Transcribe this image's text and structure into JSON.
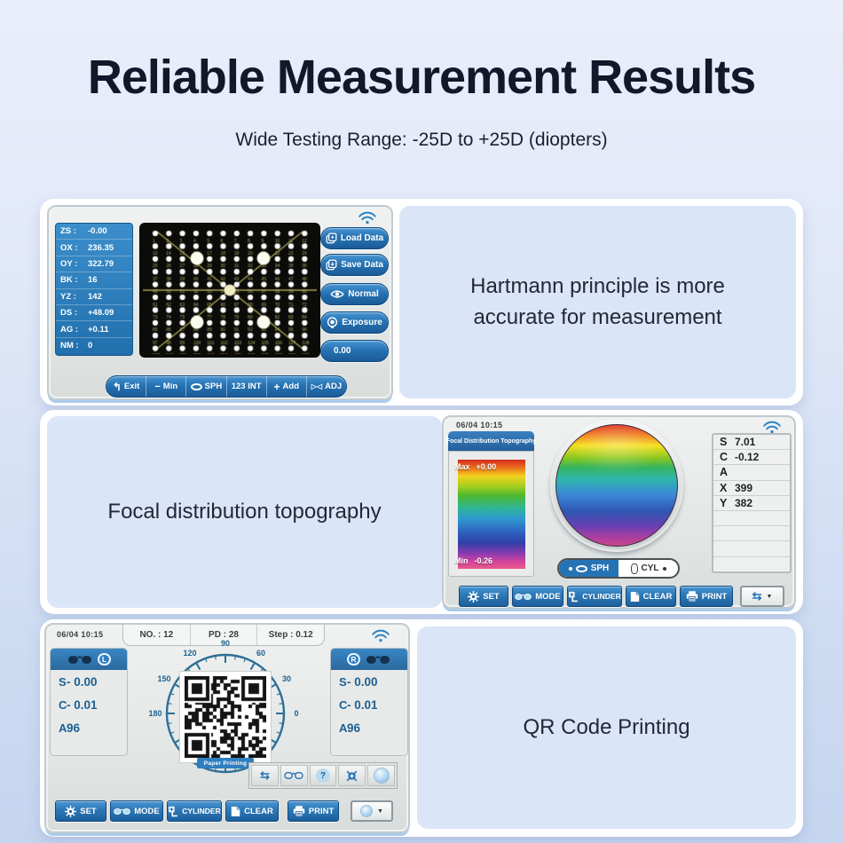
{
  "colors": {
    "accent_blue": "#2673b4",
    "panel_blue": "#dbe5f8",
    "ink": "#13172a",
    "screen_header_blue": "#2a6da8",
    "wifi_blue": "#2b82c4"
  },
  "header": {
    "title": "Reliable Measurement Results",
    "subtitle": "Wide Testing Range: -25D to +25D (diopters)"
  },
  "panel1": {
    "caption": "Hartmann principle is more accurate for measurement",
    "screen": {
      "readings": [
        {
          "label": "ZS :",
          "value": "-0.00"
        },
        {
          "label": "OX :",
          "value": "236.35"
        },
        {
          "label": "OY :",
          "value": "322.79"
        },
        {
          "label": "BK :",
          "value": "16"
        },
        {
          "label": "YZ :",
          "value": "142"
        },
        {
          "label": "DS :",
          "value": "+48.09"
        },
        {
          "label": "AG :",
          "value": "+0.11"
        },
        {
          "label": "NM :",
          "value": "0"
        }
      ],
      "buttons": [
        {
          "icon": "load-data-icon",
          "label": "Load Data"
        },
        {
          "icon": "save-data-icon",
          "label": "Save Data"
        },
        {
          "icon": "normal-mode-icon",
          "label": "Normal"
        },
        {
          "icon": "exposure-icon",
          "label": "Exposure"
        },
        {
          "icon": "",
          "label": "0.00"
        }
      ],
      "toolbar": [
        {
          "icon": "return-icon",
          "label": "Exit"
        },
        {
          "icon": "minus-icon",
          "label": "Min"
        },
        {
          "icon": "oval-lens-icon",
          "label": "SPH"
        },
        {
          "icon": "",
          "label": "123 INT"
        },
        {
          "icon": "plus-icon",
          "label": "Add"
        },
        {
          "icon": "adjust-icon",
          "label": "ADJ"
        }
      ],
      "toolbar_icons": {
        "exit": "↰",
        "minus": "−",
        "plus": "+",
        "adj": "▷◁"
      }
    }
  },
  "panel2": {
    "caption": "Focal distribution topography",
    "screen": {
      "datetime": "06/04  10:15",
      "header": "Focal Distribution Topography",
      "scale": {
        "max_label": "Max",
        "max_value": "+0.00",
        "min_label": "Min",
        "min_value": "-0.26"
      },
      "table": [
        {
          "label": "S",
          "value": "7.01"
        },
        {
          "label": "C",
          "value": "-0.12"
        },
        {
          "label": "A",
          "value": ""
        },
        {
          "label": "X",
          "value": "399"
        },
        {
          "label": "Y",
          "value": "382"
        },
        {
          "label": "",
          "value": ""
        },
        {
          "label": "",
          "value": ""
        },
        {
          "label": "",
          "value": ""
        },
        {
          "label": "",
          "value": ""
        }
      ],
      "toggle": {
        "left": "SPH",
        "right": "CYL"
      },
      "toolbar": [
        "SET",
        "MODE",
        "CYLINDER",
        "CLEAR",
        "PRINT"
      ]
    }
  },
  "panel3": {
    "caption": "QR Code Printing",
    "screen": {
      "datetime": "06/04  10:15",
      "meta": [
        "NO. : 12",
        "PD : 28",
        "Step : 0.12"
      ],
      "left_eye": {
        "badge": "L",
        "rows": [
          {
            "label": "S",
            "value": "- 0.00"
          },
          {
            "label": "C",
            "value": "- 0.01"
          },
          {
            "label": "A",
            "value": "96"
          }
        ]
      },
      "right_eye": {
        "badge": "R",
        "rows": [
          {
            "label": "S",
            "value": "- 0.00"
          },
          {
            "label": "C",
            "value": "- 0.01"
          },
          {
            "label": "A",
            "value": "96"
          }
        ]
      },
      "protractor_labels": [
        "90",
        "120",
        "60",
        "150",
        "30",
        "180",
        "0"
      ],
      "qr_caption": "Paper Printing",
      "toolbar": [
        "SET",
        "MODE",
        "CYLINDER",
        "CLEAR",
        "PRINT"
      ]
    }
  }
}
